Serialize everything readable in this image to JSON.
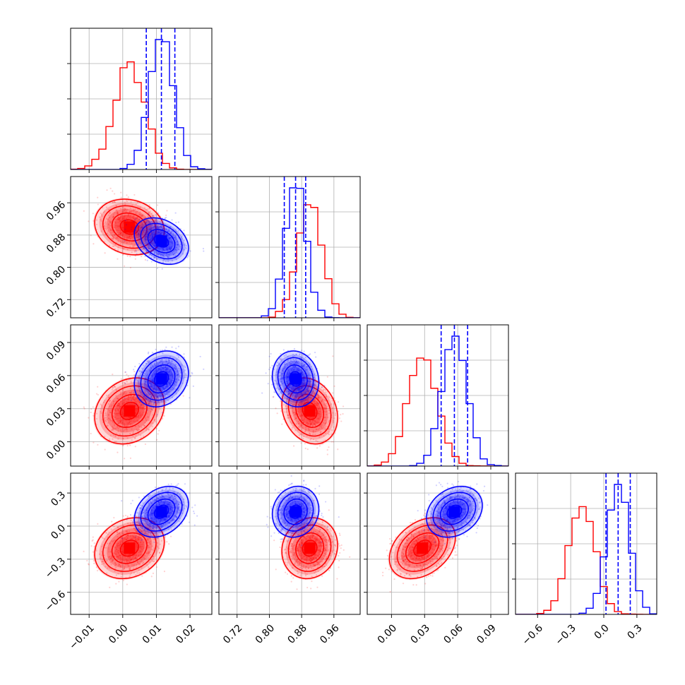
{
  "chart_data": {
    "type": "corner",
    "parameters": 4,
    "grid": true,
    "series": [
      {
        "color": "#ff0000",
        "mean": [
          0.002,
          0.9,
          0.028,
          -0.2
        ],
        "std": [
          0.0045,
          0.03,
          0.013,
          0.12
        ],
        "corr": [
          [
            1,
            -0.15,
            0.2,
            0.2
          ],
          [
            -0.15,
            1,
            -0.2,
            0.1
          ],
          [
            0.2,
            -0.2,
            1,
            0.35
          ],
          [
            0.2,
            0.1,
            0.35,
            1
          ]
        ]
      },
      {
        "color": "#0000ff",
        "mean": [
          0.0115,
          0.865,
          0.057,
          0.13
        ],
        "std": [
          0.0035,
          0.025,
          0.011,
          0.1
        ],
        "corr": [
          [
            1,
            -0.3,
            0.2,
            0.3
          ],
          [
            -0.3,
            1,
            -0.1,
            0.1
          ],
          [
            0.2,
            -0.1,
            1,
            0.25
          ],
          [
            0.3,
            0.1,
            0.25,
            1
          ]
        ]
      }
    ],
    "quantile_lines": {
      "color": "#0000ff",
      "style": "dashed",
      "values": [
        [
          0.007,
          0.0115,
          0.0155
        ],
        [
          0.837,
          0.865,
          0.89
        ],
        [
          0.045,
          0.057,
          0.069
        ],
        [
          0.02,
          0.13,
          0.24
        ]
      ]
    },
    "axes": [
      {
        "range": [
          -0.0155,
          0.0265
        ],
        "ticks": [
          -0.01,
          0.0,
          0.01,
          0.02
        ],
        "tick_labels": [
          "−0.01",
          "0.00",
          "0.01",
          "0.02"
        ]
      },
      {
        "range": [
          0.675,
          1.025
        ],
        "ticks": [
          0.72,
          0.8,
          0.88,
          0.96
        ],
        "tick_labels": [
          "0.72",
          "0.80",
          "0.88",
          "0.96"
        ]
      },
      {
        "range": [
          -0.022,
          0.106
        ],
        "ticks": [
          0.0,
          0.03,
          0.06,
          0.09
        ],
        "tick_labels": [
          "0.00",
          "0.03",
          "0.06",
          "0.09"
        ]
      },
      {
        "range": [
          -0.8,
          0.48
        ],
        "ticks": [
          -0.6,
          -0.3,
          0.0,
          0.3
        ],
        "tick_labels": [
          "−0.6",
          "−0.3",
          "0.0",
          "0.3"
        ]
      }
    ]
  }
}
